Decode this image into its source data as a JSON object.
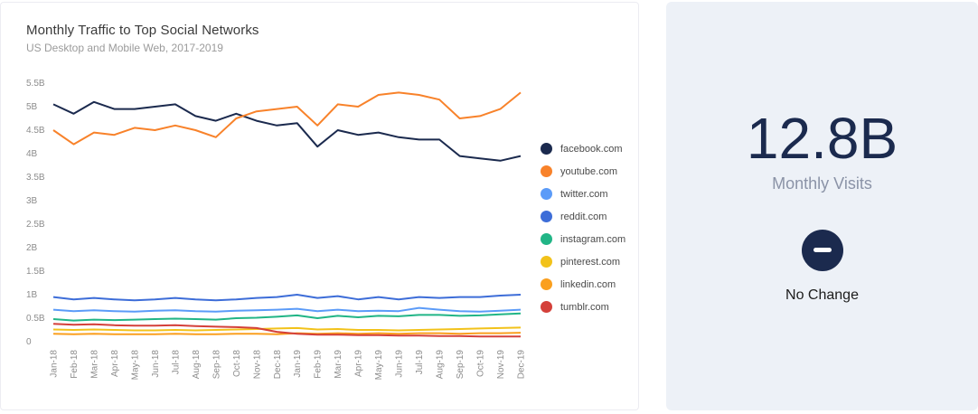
{
  "chart": {
    "title": "Monthly Traffic to Top Social Networks",
    "subtitle": "US Desktop and Mobile Web, 2017-2019"
  },
  "stat": {
    "value": "12.8B",
    "label": "Monthly Visits",
    "change_label": "No Change",
    "change_icon": "minus-icon",
    "accent_color": "#1b2a4e",
    "card_background": "#edf1f7"
  },
  "chart_data": {
    "type": "line",
    "title": "Monthly Traffic to Top Social Networks",
    "subtitle": "US Desktop and Mobile Web, 2017-2019",
    "unit": "billions of monthly visits",
    "grid": false,
    "legend_position": "right",
    "ylim": [
      0,
      5.5
    ],
    "yticks": [
      "0",
      "0.5B",
      "1B",
      "1.5B",
      "2B",
      "2.5B",
      "3B",
      "3.5B",
      "4B",
      "4.5B",
      "5B",
      "5.5B"
    ],
    "categories": [
      "Jan-18",
      "Feb-18",
      "Mar-18",
      "Apr-18",
      "May-18",
      "Jun-18",
      "Jul-18",
      "Aug-18",
      "Sep-18",
      "Oct-18",
      "Nov-18",
      "Dec-18",
      "Jan-19",
      "Feb-19",
      "Mar-19",
      "Apr-19",
      "May-19",
      "Jun-19",
      "Jul-19",
      "Aug-19",
      "Sep-19",
      "Oct-19",
      "Nov-19",
      "Dec-19"
    ],
    "series": [
      {
        "name": "facebook.com",
        "color": "#1b2a4e",
        "values": [
          5.05,
          4.85,
          5.1,
          4.95,
          4.95,
          5.0,
          5.05,
          4.8,
          4.7,
          4.85,
          4.7,
          4.6,
          4.65,
          4.15,
          4.5,
          4.4,
          4.45,
          4.35,
          4.3,
          4.3,
          3.95,
          3.9,
          3.85,
          3.95
        ]
      },
      {
        "name": "youtube.com",
        "color": "#f8822a",
        "values": [
          4.5,
          4.2,
          4.45,
          4.4,
          4.55,
          4.5,
          4.6,
          4.5,
          4.35,
          4.75,
          4.9,
          4.95,
          5.0,
          4.6,
          5.05,
          5.0,
          5.25,
          5.3,
          5.25,
          5.15,
          4.75,
          4.8,
          4.95,
          5.3
        ]
      },
      {
        "name": "twitter.com",
        "color": "#5b9bf8",
        "values": [
          0.68,
          0.65,
          0.67,
          0.65,
          0.64,
          0.66,
          0.67,
          0.65,
          0.64,
          0.66,
          0.67,
          0.68,
          0.7,
          0.65,
          0.68,
          0.65,
          0.66,
          0.65,
          0.72,
          0.68,
          0.65,
          0.64,
          0.66,
          0.68
        ]
      },
      {
        "name": "reddit.com",
        "color": "#3d6dd8",
        "values": [
          0.95,
          0.9,
          0.93,
          0.9,
          0.88,
          0.9,
          0.93,
          0.9,
          0.88,
          0.9,
          0.93,
          0.95,
          1.0,
          0.93,
          0.97,
          0.9,
          0.95,
          0.9,
          0.95,
          0.93,
          0.95,
          0.95,
          0.98,
          1.0
        ]
      },
      {
        "name": "instagram.com",
        "color": "#21b586",
        "values": [
          0.48,
          0.45,
          0.47,
          0.46,
          0.47,
          0.48,
          0.49,
          0.48,
          0.47,
          0.5,
          0.51,
          0.53,
          0.56,
          0.5,
          0.55,
          0.52,
          0.55,
          0.54,
          0.57,
          0.57,
          0.55,
          0.56,
          0.58,
          0.6
        ]
      },
      {
        "name": "pinterest.com",
        "color": "#f2c21a",
        "values": [
          0.26,
          0.25,
          0.26,
          0.25,
          0.24,
          0.24,
          0.25,
          0.24,
          0.25,
          0.26,
          0.27,
          0.28,
          0.29,
          0.26,
          0.27,
          0.25,
          0.25,
          0.24,
          0.25,
          0.26,
          0.27,
          0.28,
          0.29,
          0.3
        ]
      },
      {
        "name": "linkedin.com",
        "color": "#fa9f1e",
        "values": [
          0.17,
          0.16,
          0.17,
          0.16,
          0.16,
          0.16,
          0.17,
          0.16,
          0.16,
          0.17,
          0.17,
          0.16,
          0.18,
          0.17,
          0.18,
          0.17,
          0.18,
          0.17,
          0.18,
          0.18,
          0.17,
          0.18,
          0.18,
          0.19
        ]
      },
      {
        "name": "tumblr.com",
        "color": "#d4403a",
        "values": [
          0.38,
          0.36,
          0.37,
          0.35,
          0.34,
          0.34,
          0.35,
          0.33,
          0.32,
          0.31,
          0.29,
          0.21,
          0.17,
          0.15,
          0.15,
          0.14,
          0.14,
          0.13,
          0.13,
          0.12,
          0.12,
          0.11,
          0.11,
          0.11
        ]
      }
    ]
  }
}
